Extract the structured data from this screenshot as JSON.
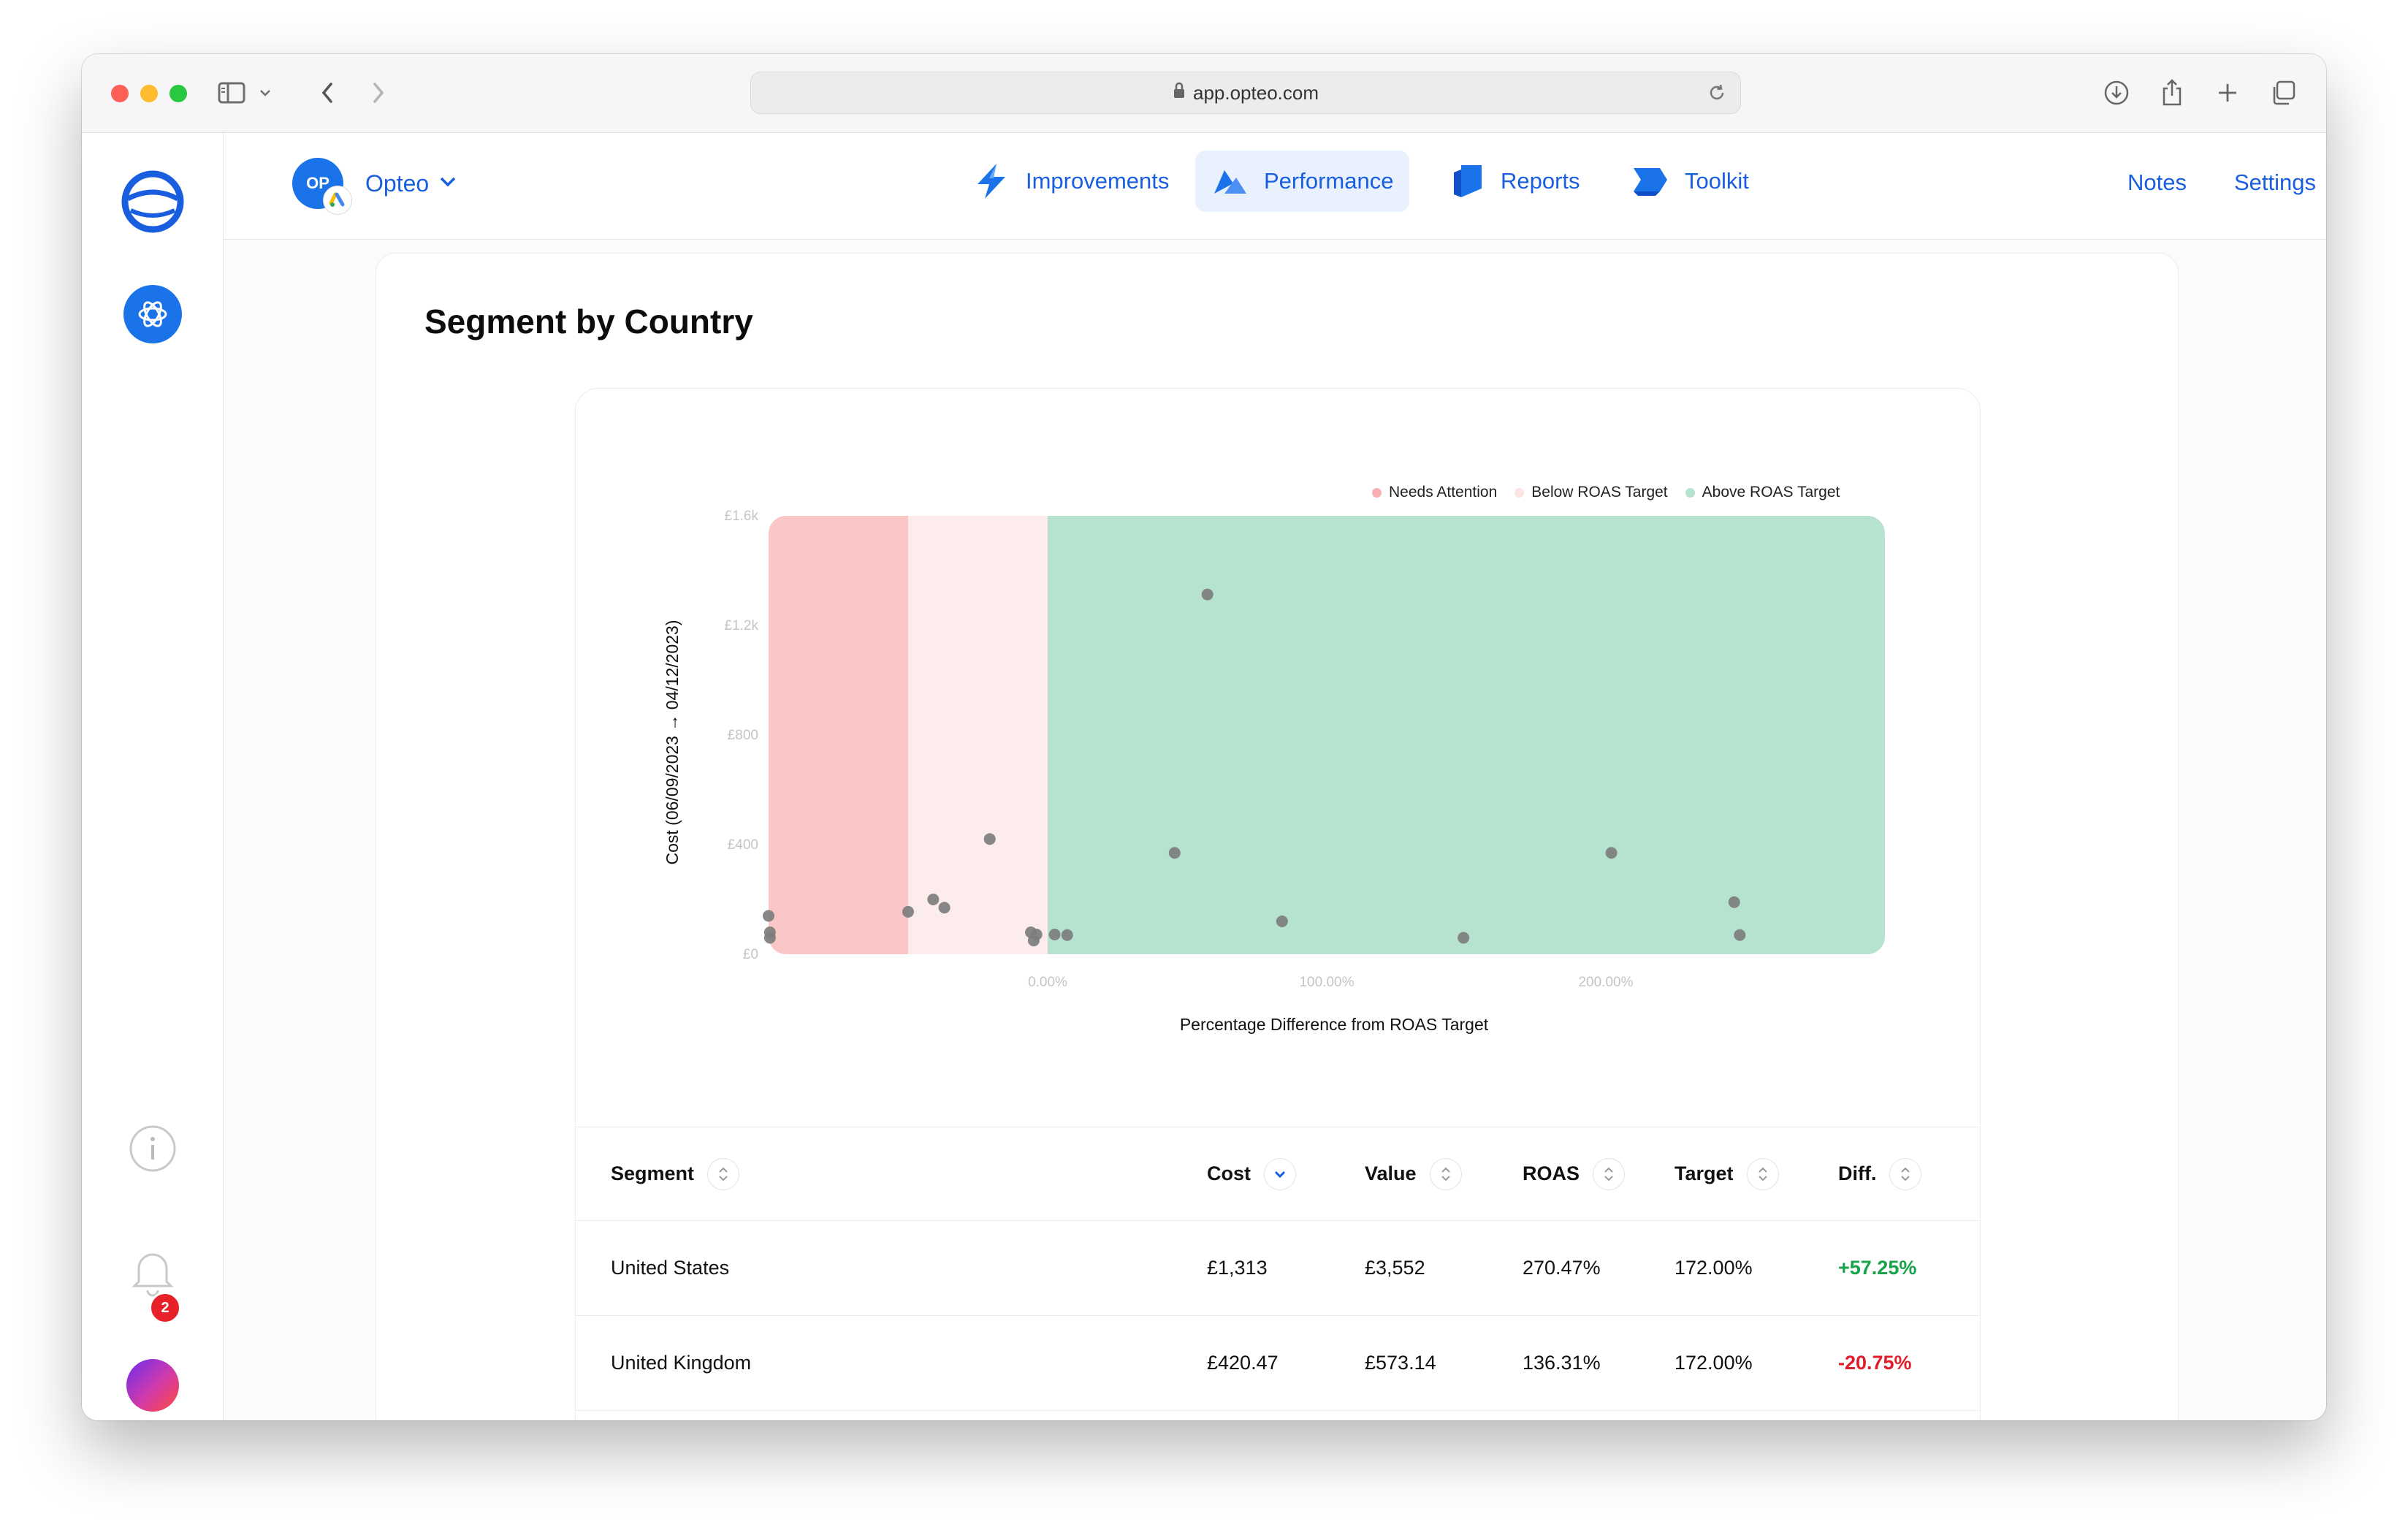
{
  "browser": {
    "url": "app.opteo.com"
  },
  "account": {
    "initials": "OP",
    "name": "Opteo"
  },
  "nav": {
    "tabs": [
      {
        "label": "Improvements"
      },
      {
        "label": "Performance",
        "active": true
      },
      {
        "label": "Reports"
      },
      {
        "label": "Toolkit"
      }
    ],
    "notes_label": "Notes",
    "settings_label": "Settings"
  },
  "rail": {
    "notification_count": "2"
  },
  "page": {
    "title": "Segment by Country"
  },
  "chart_data": {
    "type": "scatter",
    "xlabel": "Percentage Difference from ROAS Target",
    "ylabel": "Cost (06/09/2023 → 04/12/2023)",
    "x_ticks": [
      "0.00%",
      "100.00%",
      "200.00%"
    ],
    "y_ticks": [
      "£0",
      "£400",
      "£800",
      "£1.2k",
      "£1.6k"
    ],
    "xlim": [
      -100,
      300
    ],
    "ylim": [
      0,
      1600
    ],
    "zones": [
      {
        "name": "Needs Attention",
        "from": -100,
        "to": -50,
        "color": "#fbc6c6"
      },
      {
        "name": "Below ROAS Target",
        "from": -50,
        "to": 0,
        "color": "#fdecec"
      },
      {
        "name": "Above ROAS Target",
        "from": 0,
        "to": 300,
        "color": "#b5e3cf"
      }
    ],
    "legend": [
      {
        "label": "Needs Attention",
        "color": "#f7b0b0"
      },
      {
        "label": "Below ROAS Target",
        "color": "#fde4e4"
      },
      {
        "label": "Above ROAS Target",
        "color": "#b5e3cf"
      }
    ],
    "legend_position": "top-right",
    "points": [
      {
        "x": 57.25,
        "y": 1313
      },
      {
        "x": -20.75,
        "y": 420.47
      },
      {
        "x": 45.5,
        "y": 370
      },
      {
        "x": 202,
        "y": 370
      },
      {
        "x": 84,
        "y": 120
      },
      {
        "x": 149,
        "y": 60
      },
      {
        "x": 246,
        "y": 190
      },
      {
        "x": 248,
        "y": 70
      },
      {
        "x": -41,
        "y": 200
      },
      {
        "x": -37,
        "y": 170
      },
      {
        "x": -50,
        "y": 155
      },
      {
        "x": -6,
        "y": 80
      },
      {
        "x": -4,
        "y": 72
      },
      {
        "x": -5,
        "y": 50
      },
      {
        "x": 2.5,
        "y": 72
      },
      {
        "x": 7,
        "y": 70
      },
      {
        "x": -100,
        "y": 140
      },
      {
        "x": -99.5,
        "y": 80
      },
      {
        "x": -99.5,
        "y": 60
      }
    ]
  },
  "table": {
    "columns": [
      "Segment",
      "Cost",
      "Value",
      "ROAS",
      "Target",
      "Diff."
    ],
    "rows": [
      {
        "segment": "United States",
        "cost": "£1,313",
        "value": "£3,552",
        "roas": "270.47%",
        "target": "172.00%",
        "diff": "+57.25%"
      },
      {
        "segment": "United Kingdom",
        "cost": "£420.47",
        "value": "£573.14",
        "roas": "136.31%",
        "target": "172.00%",
        "diff": "-20.75%"
      }
    ]
  }
}
